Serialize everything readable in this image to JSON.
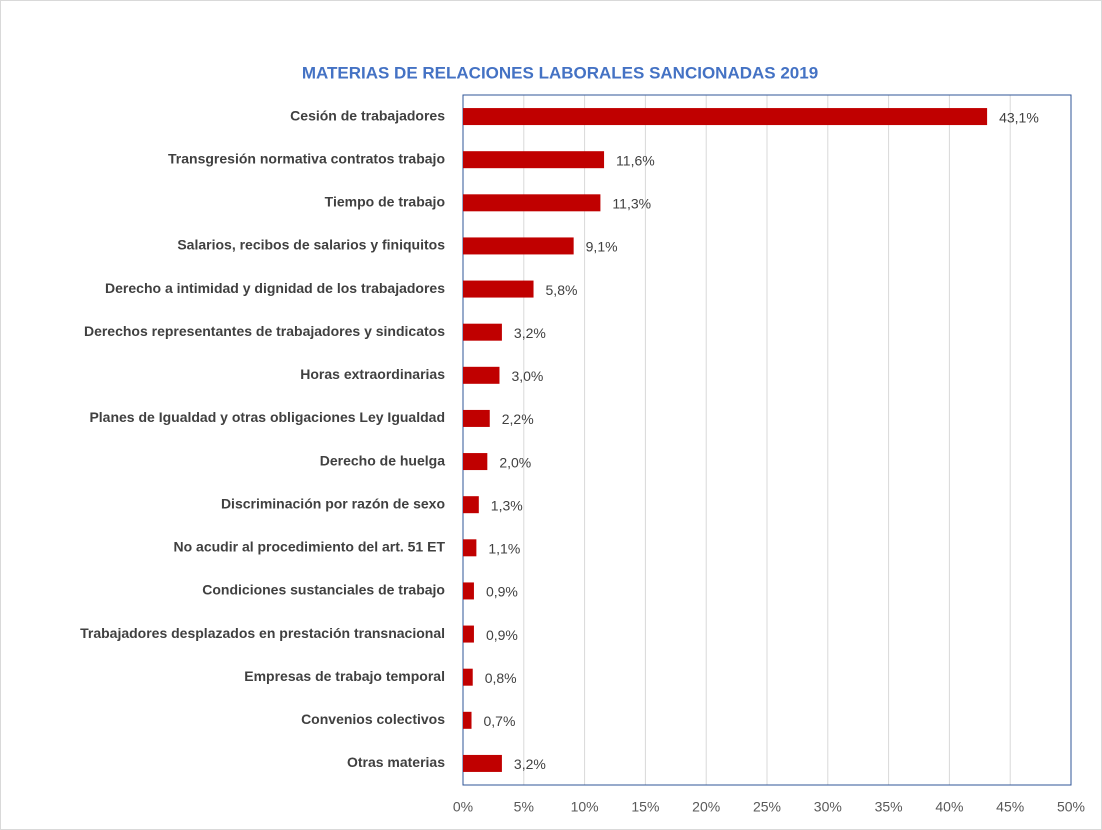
{
  "chart_data": {
    "type": "bar",
    "orientation": "horizontal",
    "title": "MATERIAS DE RELACIONES LABORALES SANCIONADAS 2019",
    "categories": [
      "Cesión de trabajadores",
      "Transgresión normativa contratos trabajo",
      "Tiempo de trabajo",
      "Salarios, recibos de salarios y finiquitos",
      "Derecho a intimidad y dignidad de los trabajadores",
      "Derechos representantes de trabajadores y sindicatos",
      "Horas extraordinarias",
      "Planes de Igualdad y otras obligaciones Ley Igualdad",
      "Derecho de huelga",
      "Discriminación por razón de sexo",
      "No acudir al procedimiento del art. 51 ET",
      "Condiciones sustanciales de trabajo",
      "Trabajadores desplazados en prestación transnacional",
      "Empresas de trabajo temporal",
      "Convenios colectivos",
      "Otras materias"
    ],
    "values": [
      43.1,
      11.6,
      11.3,
      9.1,
      5.8,
      3.2,
      3.0,
      2.2,
      2.0,
      1.3,
      1.1,
      0.9,
      0.9,
      0.8,
      0.7,
      3.2
    ],
    "value_labels": [
      "43,1%",
      "11,6%",
      "11,3%",
      "9,1%",
      "5,8%",
      "3,2%",
      "3,0%",
      "2,2%",
      "2,0%",
      "1,3%",
      "1,1%",
      "0,9%",
      "0,9%",
      "0,8%",
      "0,7%",
      "3,2%"
    ],
    "color": "#c00000",
    "xlim": [
      0,
      50
    ],
    "xticks": [
      {
        "value": 0,
        "label": "0%"
      },
      {
        "value": 5,
        "label": "5%"
      },
      {
        "value": 10,
        "label": "10%"
      },
      {
        "value": 15,
        "label": "15%"
      },
      {
        "value": 20,
        "label": "20%"
      },
      {
        "value": 25,
        "label": "25%"
      },
      {
        "value": 30,
        "label": "30%"
      },
      {
        "value": 35,
        "label": "35%"
      },
      {
        "value": 40,
        "label": "40%"
      },
      {
        "value": 45,
        "label": "45%"
      },
      {
        "value": 50,
        "label": "50%"
      }
    ],
    "grid": true
  }
}
